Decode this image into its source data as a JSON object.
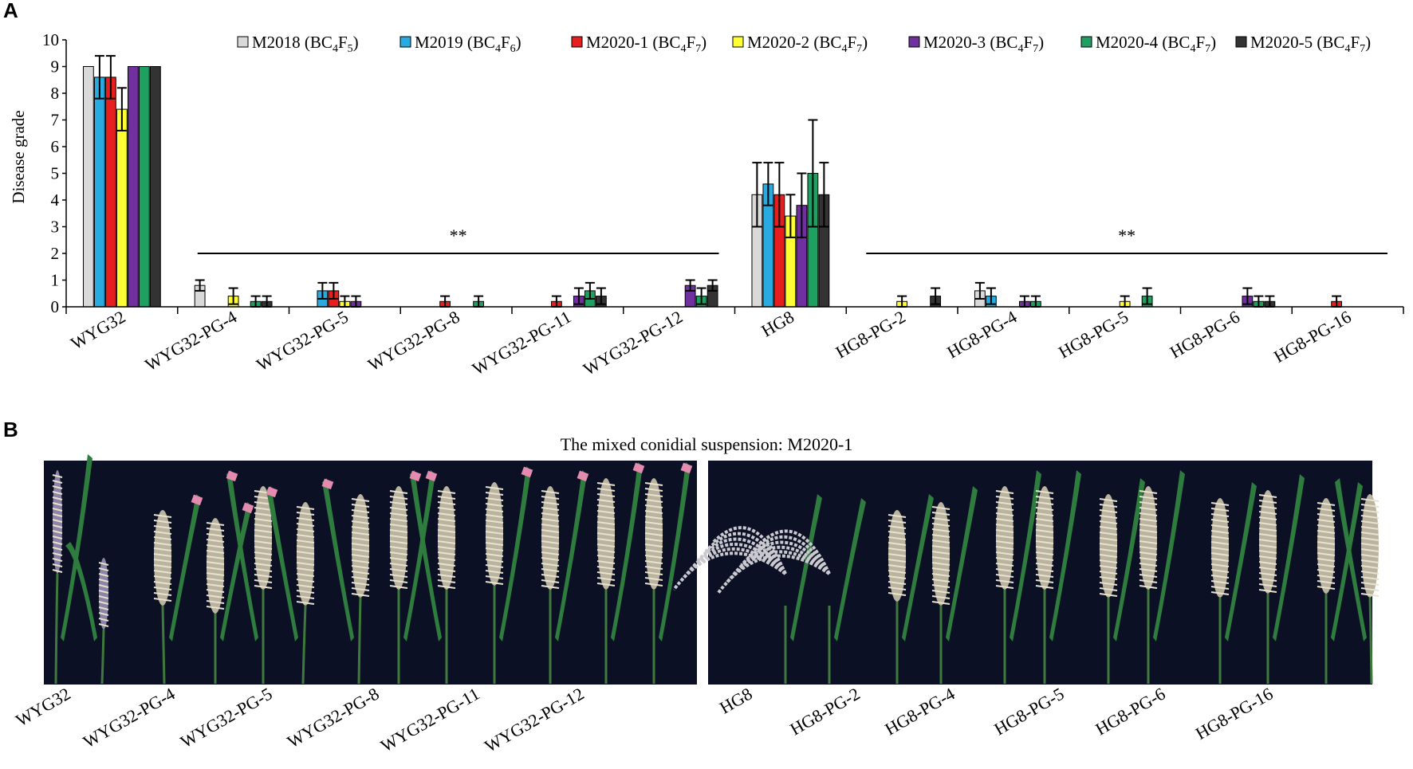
{
  "panel_a_letter": "A",
  "panel_b_letter": "B",
  "chart_data": {
    "type": "bar",
    "title": "",
    "xlabel": "",
    "ylabel": "Disease grade",
    "ylim": [
      0,
      10
    ],
    "yticks": [
      0,
      1,
      2,
      3,
      4,
      5,
      6,
      7,
      8,
      9,
      10
    ],
    "grid": false,
    "legend_position": "top",
    "categories": [
      "WYG32",
      "WYG32-PG-4",
      "WYG32-PG-5",
      "WYG32-PG-8",
      "WYG32-PG-11",
      "WYG32-PG-12",
      "HG8",
      "HG8-PG-2",
      "HG8-PG-4",
      "HG8-PG-5",
      "HG8-PG-6",
      "HG8-PG-16"
    ],
    "series": [
      {
        "name": "M2018 (BC4F5)",
        "label_main": "M2018 (BC",
        "sub1": "4",
        "mid": "F",
        "sub2": "5",
        "close": ")",
        "color": "#d9d9d9",
        "values": [
          9,
          0.8,
          0,
          0,
          0,
          0,
          4.2,
          0,
          0.6,
          0,
          0,
          0
        ],
        "errors": [
          0,
          0.2,
          0,
          0,
          0,
          0,
          1.2,
          0,
          0.3,
          0,
          0,
          0
        ]
      },
      {
        "name": "M2019 (BC4F6)",
        "label_main": "M2019 (BC",
        "sub1": "4",
        "mid": "F",
        "sub2": "6",
        "close": ")",
        "color": "#29abe2",
        "values": [
          8.6,
          0,
          0.6,
          0,
          0,
          0,
          4.6,
          0,
          0.4,
          0,
          0,
          0
        ],
        "errors": [
          0.8,
          0,
          0.3,
          0,
          0,
          0,
          0.8,
          0,
          0.3,
          0,
          0,
          0
        ]
      },
      {
        "name": "M2020-1 (BC4F7)",
        "label_main": "M2020-1 (BC",
        "sub1": "4",
        "mid": "F",
        "sub2": "7",
        "close": ")",
        "color": "#e61e1e",
        "values": [
          8.6,
          0,
          0.6,
          0.2,
          0.2,
          0,
          4.2,
          0,
          0,
          0,
          0,
          0.2
        ],
        "errors": [
          0.8,
          0,
          0.3,
          0.2,
          0.2,
          0,
          1.2,
          0,
          0,
          0,
          0,
          0.2
        ]
      },
      {
        "name": "M2020-2 (BC4F7)",
        "label_main": "M2020-2 (BC",
        "sub1": "4",
        "mid": "F",
        "sub2": "7",
        "close": ")",
        "color": "#ffff33",
        "values": [
          7.4,
          0.4,
          0.2,
          0,
          0,
          0,
          3.4,
          0.2,
          0,
          0.2,
          0,
          0
        ],
        "errors": [
          0.8,
          0.3,
          0.2,
          0,
          0,
          0,
          0.8,
          0.2,
          0,
          0.2,
          0,
          0
        ]
      },
      {
        "name": "M2020-3 (BC4F7)",
        "label_main": "M2020-3 (BC",
        "sub1": "4",
        "mid": "F",
        "sub2": "7",
        "close": ")",
        "color": "#7030a0",
        "values": [
          9,
          0,
          0.2,
          0,
          0.4,
          0.8,
          3.8,
          0,
          0.2,
          0,
          0.4,
          0
        ],
        "errors": [
          0,
          0,
          0.2,
          0,
          0.3,
          0.2,
          1.2,
          0,
          0.2,
          0,
          0.3,
          0
        ]
      },
      {
        "name": "M2020-4 (BC4F7)",
        "label_main": "M2020-4 (BC",
        "sub1": "4",
        "mid": "F",
        "sub2": "7",
        "close": ")",
        "color": "#1fa060",
        "values": [
          9,
          0.2,
          0,
          0.2,
          0.6,
          0.4,
          5.0,
          0,
          0.2,
          0.4,
          0.2,
          0
        ],
        "errors": [
          0,
          0.2,
          0,
          0.2,
          0.3,
          0.3,
          2.0,
          0,
          0.2,
          0.3,
          0.2,
          0
        ]
      },
      {
        "name": "M2020-5 (BC4F7)",
        "label_main": "M2020-5 (BC",
        "sub1": "4",
        "mid": "F",
        "sub2": "7",
        "close": ")",
        "color": "#333333",
        "values": [
          9,
          0.2,
          0,
          0,
          0.4,
          0.8,
          4.2,
          0.4,
          0,
          0,
          0.2,
          0
        ],
        "errors": [
          0,
          0.2,
          0,
          0,
          0.3,
          0.2,
          1.2,
          0.3,
          0,
          0,
          0.2,
          0
        ]
      }
    ],
    "annotations": [
      {
        "text": "**",
        "from_category": "WYG32-PG-4",
        "to_category": "WYG32-PG-12",
        "y": 2
      },
      {
        "text": "**",
        "from_category": "HG8-PG-2",
        "to_category": "HG8-PG-16",
        "y": 2
      }
    ]
  },
  "panel_b": {
    "title": "The mixed conidial suspension: M2020-1",
    "left_labels": [
      "WYG32",
      "WYG32-PG-4",
      "WYG32-PG-5",
      "WYG32-PG-8",
      "WYG32-PG-11",
      "WYG32-PG-12"
    ],
    "right_labels": [
      "HG8",
      "HG8-PG-2",
      "HG8-PG-4",
      "HG8-PG-5",
      "HG8-PG-6",
      "HG8-PG-16"
    ]
  }
}
